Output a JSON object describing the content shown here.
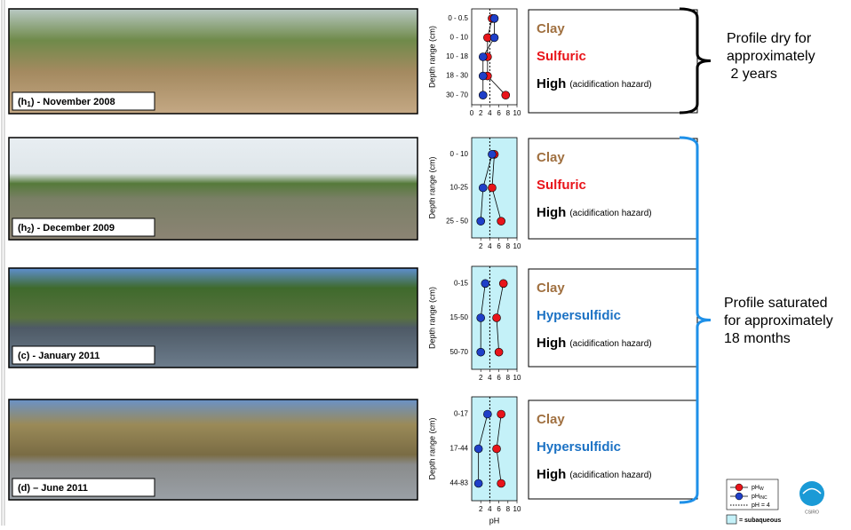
{
  "chart_data": [
    {
      "type": "line",
      "y_label": "Depth range (cm)",
      "categories": [
        "0 - 0.5",
        "0 - 10",
        "10 - 18",
        "18 - 30",
        "30 - 70"
      ],
      "series": [
        {
          "name": "pH",
          "sub": "W",
          "color": "#e8141a",
          "values": [
            4.5,
            3.5,
            3.5,
            3.5,
            7.5
          ]
        },
        {
          "name": "pH",
          "sub": "INC",
          "color": "#1f3fc8",
          "values": [
            5,
            5,
            2.5,
            2.5,
            2.5
          ]
        }
      ],
      "xlim": [
        0,
        10
      ],
      "xticks": [
        0,
        2,
        4,
        6,
        8,
        10
      ],
      "ref_line": 4,
      "ref_label": "pH = 4",
      "subaqueous": false
    },
    {
      "type": "line",
      "y_label": "Depth range (cm)",
      "categories": [
        "0 - 10",
        "10-25",
        "25 - 50"
      ],
      "series": [
        {
          "color": "#e8141a",
          "values": [
            5,
            4.5,
            6.5
          ]
        },
        {
          "color": "#1f3fc8",
          "values": [
            4.5,
            2.5,
            2
          ]
        }
      ],
      "xlim": [
        0,
        10
      ],
      "xticks": [
        2,
        4,
        6,
        8,
        10
      ],
      "ref_line": 4,
      "subaqueous": true
    },
    {
      "type": "line",
      "y_label": "Depth range (cm)",
      "categories": [
        "0-15",
        "15-50",
        "50-70"
      ],
      "series": [
        {
          "color": "#e8141a",
          "values": [
            7,
            5.5,
            6
          ]
        },
        {
          "color": "#1f3fc8",
          "values": [
            3,
            2,
            2
          ]
        }
      ],
      "xlim": [
        0,
        10
      ],
      "xticks": [
        2,
        4,
        6,
        8,
        10
      ],
      "ref_line": 4,
      "subaqueous": true
    },
    {
      "type": "line",
      "y_label": "Depth range (cm)",
      "x_label": "pH",
      "categories": [
        "0-17",
        "17-44",
        "44-83"
      ],
      "series": [
        {
          "color": "#e8141a",
          "values": [
            6.5,
            5.5,
            6.5
          ]
        },
        {
          "color": "#1f3fc8",
          "values": [
            3.5,
            1.5,
            1.5
          ]
        }
      ],
      "xlim": [
        0,
        10
      ],
      "xticks": [
        2,
        4,
        6,
        8,
        10
      ],
      "ref_line": 4,
      "subaqueous": true
    }
  ],
  "photos": [
    {
      "label": "(h",
      "sub": "1",
      "rest": ") - November 2008"
    },
    {
      "label": "(h",
      "sub": "2",
      "rest": ") - December 2009"
    },
    {
      "label": "(c) - January 2011"
    },
    {
      "label": "(d) – June 2011"
    }
  ],
  "profiles": [
    {
      "texture": "Clay",
      "class": "Sulfuric",
      "class_color": "#e8141a",
      "hazard": "High",
      "note": "(acidification hazard)"
    },
    {
      "texture": "Clay",
      "class": "Sulfuric",
      "class_color": "#e8141a",
      "hazard": "High",
      "note": "(acidification hazard)"
    },
    {
      "texture": "Clay",
      "class": "Hypersulfidic",
      "class_color": "#1c72c4",
      "hazard": "High",
      "note": "(acidification hazard)"
    },
    {
      "texture": "Clay",
      "class": "Hypersulfidic",
      "class_color": "#1c72c4",
      "hazard": "High",
      "note": "(acidification hazard)"
    }
  ],
  "brackets": [
    {
      "lines": [
        "Profile dry for",
        "approximately",
        " 2 years"
      ],
      "color": "#000000"
    },
    {
      "lines": [
        "Profile saturated",
        "for approximately",
        "18 months"
      ],
      "color": "#1e90e8"
    }
  ],
  "subaqueous_label": "= subaqueous",
  "logo": "CSIRO"
}
